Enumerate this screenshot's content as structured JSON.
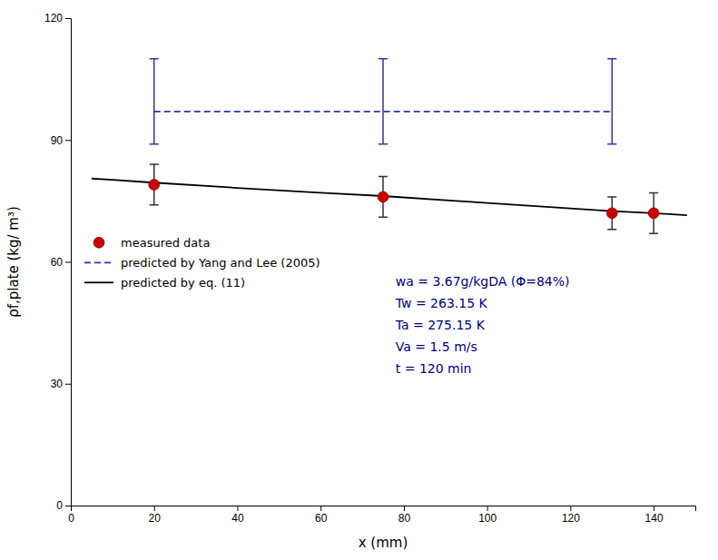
{
  "chart_data": {
    "type": "line",
    "xlabel": "x (mm)",
    "ylabel": "ρf,plate (kg/ m³)",
    "series": [
      {
        "name": "measured data",
        "type": "scatter",
        "color": "#cc0000",
        "marker": "circle",
        "line_style": "none",
        "x": [
          20,
          75,
          130,
          140
        ],
        "values": [
          79,
          76,
          72,
          72
        ],
        "errors": [
          5,
          5,
          4,
          5
        ]
      },
      {
        "name": "predicted by Yang and Lee (2005)",
        "type": "line",
        "color": "#3333aa",
        "line_style": "dashed",
        "x": [
          20,
          75,
          130
        ],
        "values": [
          97,
          97,
          97
        ],
        "error_plus": [
          13,
          13,
          13
        ],
        "error_minus": [
          8,
          8,
          8
        ]
      },
      {
        "name": "predicted by eq. (11)",
        "type": "line",
        "color": "#000000",
        "line_style": "solid",
        "x": [
          5,
          10,
          20,
          40,
          60,
          75,
          100,
          115,
          130,
          140,
          148
        ],
        "values": [
          80.5,
          80.2,
          79.5,
          78.2,
          77.0,
          76.2,
          74.5,
          73.5,
          72.5,
          72.0,
          71.5
        ]
      }
    ],
    "xlim": [
      0,
      150
    ],
    "ylim": [
      0,
      120
    ],
    "xticks": [
      0,
      20,
      40,
      60,
      80,
      100,
      120,
      140
    ],
    "yticks": [
      0,
      30,
      60,
      90,
      120
    ],
    "grid": false,
    "legend": "center left",
    "annotations": [
      {
        "lines": [
          "wa = 3.67g/kgDA (Φ=84%)",
          "Tw = 263.15 K",
          "Ta = 275.15 K",
          "Va = 1.5 m/s",
          "t = 120 min"
        ],
        "color": "#000080"
      }
    ]
  }
}
